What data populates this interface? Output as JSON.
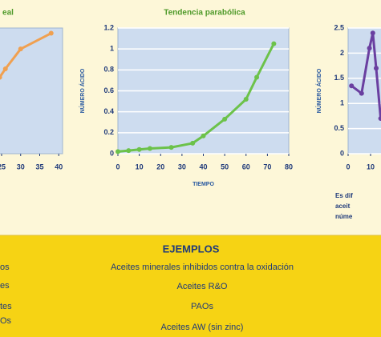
{
  "chart_data": [
    {
      "type": "line",
      "title": "eal",
      "x": [
        24.5,
        26,
        30,
        38
      ],
      "series": [
        {
          "color": "#f0a050",
          "values": [
            0.73,
            0.81,
            1.0,
            1.15
          ]
        }
      ],
      "xlim": [
        17,
        41
      ],
      "xticks": [
        25,
        30,
        35,
        40
      ],
      "ylim": [
        0,
        1.2
      ],
      "grid": false
    },
    {
      "type": "line",
      "title": "Tendencia parabólica",
      "xlabel": "TIEMPO",
      "ylabel": "NÚMERO ÁCIDO",
      "x": [
        0,
        5,
        10,
        15,
        25,
        35,
        40,
        50,
        60,
        65,
        73
      ],
      "series": [
        {
          "color": "#6cc24a",
          "values": [
            0.02,
            0.03,
            0.04,
            0.05,
            0.06,
            0.1,
            0.17,
            0.33,
            0.52,
            0.73,
            1.05
          ]
        }
      ],
      "xlim": [
        0,
        80
      ],
      "xticks": [
        0,
        10,
        20,
        30,
        40,
        50,
        60,
        70,
        80
      ],
      "ylim": [
        0,
        1.2
      ],
      "yticks": [
        0,
        0.2,
        0.4,
        0.6,
        0.8,
        1,
        1.2
      ],
      "grid": true
    },
    {
      "type": "line",
      "ylabel": "NÚMERO ÁCIDO",
      "x": [
        1.5,
        6,
        9.5,
        11,
        12.5,
        14.5
      ],
      "series": [
        {
          "color": "#6a3fa0",
          "values": [
            1.35,
            1.2,
            2.1,
            2.4,
            1.7,
            0.7
          ]
        }
      ],
      "xlim": [
        0,
        40
      ],
      "xticks": [
        0,
        10
      ],
      "ylim": [
        0,
        2.5
      ],
      "yticks": [
        0,
        0.5,
        1,
        1.5,
        2,
        2.5
      ],
      "grid": true
    }
  ],
  "note": {
    "lines": [
      "Es dif",
      "aceit",
      "núme"
    ]
  },
  "examples": {
    "title": "EJEMPLOS",
    "left": [
      "os",
      "es",
      "tes",
      "Os"
    ],
    "rows": [
      "Aceites minerales inhibidos contra la oxidación",
      "Aceites R&O",
      "PAOs",
      "Aceites AW (sin zinc)"
    ]
  }
}
